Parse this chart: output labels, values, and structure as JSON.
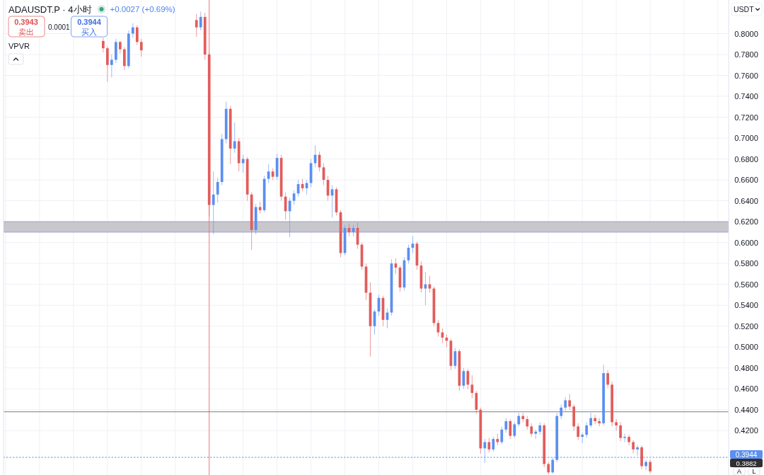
{
  "chart_data": {
    "type": "candlestick",
    "title": "ADAUSDT.P · 4小时",
    "ylabel": "USDT",
    "categories": [
      null,
      null,
      null,
      null,
      null,
      null,
      null,
      null,
      null,
      null,
      null,
      null,
      null,
      null,
      null,
      null,
      null,
      null,
      null,
      null,
      null,
      null,
      null,
      null,
      null,
      null,
      null,
      null,
      null,
      null,
      null,
      null,
      null,
      null,
      null,
      null,
      null,
      null,
      null,
      null,
      null,
      null,
      null,
      null,
      null,
      null,
      null,
      null,
      null,
      null,
      null,
      null,
      null,
      null,
      null,
      null,
      null,
      null,
      null,
      null,
      null,
      null,
      null,
      null,
      null,
      null,
      null,
      null,
      null,
      null,
      null,
      null,
      null,
      null,
      null,
      null,
      null,
      null,
      null,
      null,
      null,
      null,
      null,
      null,
      null,
      null,
      null,
      null,
      null,
      null,
      null,
      null,
      null,
      null,
      null,
      null,
      null,
      null,
      null,
      null,
      null,
      null,
      null,
      null,
      null,
      null,
      null,
      null,
      null,
      null,
      null,
      null,
      null,
      null,
      null,
      null,
      null,
      null,
      null,
      null,
      null,
      null,
      null,
      null,
      null,
      null,
      null,
      null,
      null,
      null,
      null,
      null,
      null,
      null,
      null,
      null,
      null,
      null,
      null,
      null,
      null,
      null,
      null,
      null,
      null,
      null,
      null,
      null,
      null,
      null,
      null,
      null,
      null,
      null,
      null,
      null,
      null,
      null,
      null,
      null,
      null,
      null,
      null,
      null,
      null,
      null,
      null,
      null,
      null,
      null,
      null
    ],
    "ohlc": [
      null,
      null,
      null,
      null,
      null,
      null,
      null,
      null,
      null,
      null,
      null,
      null,
      null,
      null,
      null,
      null,
      null,
      null,
      null,
      null,
      null,
      null,
      null,
      [
        0.793,
        0.796,
        0.782,
        0.786
      ],
      [
        0.786,
        0.788,
        0.754,
        0.77
      ],
      [
        0.77,
        0.78,
        0.758,
        0.775
      ],
      [
        0.775,
        0.795,
        0.772,
        0.792
      ],
      [
        0.792,
        0.793,
        0.781,
        0.785
      ],
      [
        0.785,
        0.787,
        0.765,
        0.769
      ],
      [
        0.769,
        0.803,
        0.767,
        0.8
      ],
      [
        0.8,
        0.81,
        0.796,
        0.806
      ],
      [
        0.806,
        0.808,
        0.789,
        0.792
      ],
      [
        0.792,
        0.795,
        0.778,
        0.784
      ],
      null,
      null,
      null,
      null,
      null,
      null,
      null,
      null,
      null,
      null,
      null,
      null,
      [
        0.813,
        0.819,
        0.797,
        0.806
      ],
      [
        0.806,
        0.821,
        0.803,
        0.816
      ],
      [
        0.816,
        0.82,
        0.775,
        0.78
      ],
      [
        0.78,
        0.782,
        0.625,
        0.636
      ],
      [
        0.636,
        0.668,
        0.608,
        0.646
      ],
      [
        0.646,
        0.662,
        0.638,
        0.658
      ],
      [
        0.658,
        0.704,
        0.655,
        0.699
      ],
      [
        0.699,
        0.735,
        0.695,
        0.728
      ],
      [
        0.728,
        0.731,
        0.675,
        0.69
      ],
      [
        0.69,
        0.715,
        0.686,
        0.697
      ],
      [
        0.697,
        0.7,
        0.668,
        0.676
      ],
      [
        0.676,
        0.684,
        0.667,
        0.68
      ],
      [
        0.68,
        0.682,
        0.64,
        0.646
      ],
      [
        0.646,
        0.648,
        0.593,
        0.612
      ],
      [
        0.612,
        0.637,
        0.608,
        0.634
      ],
      [
        0.634,
        0.639,
        0.628,
        0.631
      ],
      [
        0.631,
        0.664,
        0.629,
        0.661
      ],
      [
        0.661,
        0.675,
        0.657,
        0.668
      ],
      [
        0.668,
        0.671,
        0.66,
        0.663
      ],
      [
        0.663,
        0.685,
        0.66,
        0.681
      ],
      [
        0.681,
        0.684,
        0.64,
        0.644
      ],
      [
        0.644,
        0.648,
        0.622,
        0.63
      ],
      [
        0.63,
        0.643,
        0.605,
        0.64
      ],
      [
        0.64,
        0.65,
        0.636,
        0.647
      ],
      [
        0.647,
        0.66,
        0.644,
        0.656
      ],
      [
        0.656,
        0.661,
        0.649,
        0.652
      ],
      [
        0.652,
        0.66,
        0.646,
        0.657
      ],
      [
        0.657,
        0.68,
        0.653,
        0.676
      ],
      [
        0.676,
        0.693,
        0.672,
        0.684
      ],
      [
        0.684,
        0.687,
        0.668,
        0.672
      ],
      [
        0.672,
        0.676,
        0.655,
        0.66
      ],
      [
        0.66,
        0.664,
        0.64,
        0.645
      ],
      [
        0.645,
        0.655,
        0.624,
        0.651
      ],
      [
        0.651,
        0.653,
        0.626,
        0.629
      ],
      [
        0.629,
        0.631,
        0.586,
        0.59
      ],
      [
        0.59,
        0.617,
        0.588,
        0.614
      ],
      [
        0.614,
        0.618,
        0.606,
        0.61
      ],
      [
        0.61,
        0.617,
        0.606,
        0.614
      ],
      [
        0.614,
        0.619,
        0.594,
        0.598
      ],
      [
        0.598,
        0.6,
        0.574,
        0.577
      ],
      [
        0.577,
        0.58,
        0.545,
        0.552
      ],
      [
        0.552,
        0.562,
        0.491,
        0.52
      ],
      [
        0.52,
        0.536,
        0.512,
        0.534
      ],
      [
        0.534,
        0.55,
        0.53,
        0.547
      ],
      [
        0.547,
        0.549,
        0.52,
        0.526
      ],
      [
        0.526,
        0.537,
        0.518,
        0.533
      ],
      [
        0.533,
        0.584,
        0.53,
        0.58
      ],
      [
        0.58,
        0.585,
        0.57,
        0.576
      ],
      [
        0.576,
        0.578,
        0.553,
        0.557
      ],
      [
        0.557,
        0.586,
        0.554,
        0.583
      ],
      [
        0.583,
        0.598,
        0.58,
        0.595
      ],
      [
        0.595,
        0.606,
        0.59,
        0.599
      ],
      [
        0.599,
        0.601,
        0.574,
        0.578
      ],
      [
        0.578,
        0.582,
        0.552,
        0.556
      ],
      [
        0.556,
        0.572,
        0.54,
        0.56
      ],
      [
        0.56,
        0.568,
        0.552,
        0.556
      ],
      [
        0.556,
        0.558,
        0.52,
        0.523
      ],
      [
        0.523,
        0.526,
        0.51,
        0.514
      ],
      [
        0.514,
        0.518,
        0.504,
        0.509
      ],
      [
        0.509,
        0.512,
        0.5,
        0.506
      ],
      [
        0.506,
        0.508,
        0.478,
        0.482
      ],
      [
        0.482,
        0.499,
        0.479,
        0.496
      ],
      [
        0.496,
        0.498,
        0.458,
        0.463
      ],
      [
        0.463,
        0.48,
        0.46,
        0.477
      ],
      [
        0.477,
        0.479,
        0.46,
        0.464
      ],
      [
        0.464,
        0.473,
        0.451,
        0.456
      ],
      [
        0.456,
        0.458,
        0.436,
        0.44
      ],
      [
        0.44,
        0.442,
        0.398,
        0.403
      ],
      [
        0.403,
        0.412,
        0.389,
        0.409
      ],
      [
        0.409,
        0.413,
        0.399,
        0.402
      ],
      [
        0.402,
        0.414,
        0.4,
        0.412
      ],
      [
        0.412,
        0.417,
        0.406,
        0.409
      ],
      [
        0.409,
        0.424,
        0.407,
        0.421
      ],
      [
        0.421,
        0.432,
        0.418,
        0.429
      ],
      [
        0.429,
        0.431,
        0.412,
        0.415
      ],
      [
        0.415,
        0.428,
        0.413,
        0.426
      ],
      [
        0.426,
        0.437,
        0.424,
        0.434
      ],
      [
        0.434,
        0.437,
        0.428,
        0.431
      ],
      [
        0.431,
        0.434,
        0.421,
        0.424
      ],
      [
        0.424,
        0.427,
        0.414,
        0.417
      ],
      [
        0.417,
        0.421,
        0.412,
        0.419
      ],
      [
        0.419,
        0.428,
        0.416,
        0.425
      ],
      [
        0.425,
        0.427,
        0.385,
        0.388
      ],
      [
        0.388,
        0.39,
        0.378,
        0.38
      ],
      [
        0.38,
        0.394,
        0.379,
        0.392
      ],
      [
        0.392,
        0.437,
        0.39,
        0.434
      ],
      [
        0.434,
        0.445,
        0.431,
        0.442
      ],
      [
        0.442,
        0.452,
        0.439,
        0.449
      ],
      [
        0.449,
        0.455,
        0.44,
        0.443
      ],
      [
        0.443,
        0.445,
        0.42,
        0.424
      ],
      [
        0.424,
        0.427,
        0.411,
        0.414
      ],
      [
        0.414,
        0.418,
        0.408,
        0.416
      ],
      [
        0.416,
        0.428,
        0.413,
        0.425
      ],
      [
        0.425,
        0.437,
        0.423,
        0.432
      ],
      [
        0.432,
        0.435,
        0.426,
        0.429
      ],
      [
        0.429,
        0.432,
        0.424,
        0.427
      ],
      [
        0.427,
        0.483,
        0.425,
        0.475
      ],
      [
        0.475,
        0.478,
        0.461,
        0.464
      ],
      [
        0.464,
        0.467,
        0.424,
        0.428
      ],
      [
        0.428,
        0.431,
        0.42,
        0.425
      ],
      [
        0.425,
        0.428,
        0.41,
        0.413
      ],
      [
        0.413,
        0.417,
        0.409,
        0.414
      ],
      [
        0.414,
        0.416,
        0.406,
        0.409
      ],
      [
        0.409,
        0.411,
        0.398,
        0.402
      ],
      [
        0.402,
        0.406,
        0.396,
        0.404
      ],
      [
        0.404,
        0.406,
        0.383,
        0.386
      ],
      [
        0.386,
        0.392,
        0.382,
        0.39
      ],
      [
        0.39,
        0.392,
        0.379,
        0.381
      ],
      null,
      null,
      null,
      null,
      null,
      null,
      null,
      null,
      null,
      null,
      null,
      null,
      null,
      null,
      null,
      null,
      null,
      null
    ],
    "colors": [
      null,
      null,
      null,
      null,
      null,
      null,
      null,
      null,
      null,
      null,
      null,
      null,
      null,
      null,
      null,
      null,
      null,
      null,
      null,
      null,
      null,
      null,
      null,
      "#e25c5c",
      "#e25c5c",
      "#5b8ff0",
      "#5b8ff0",
      "#e25c5c",
      "#e25c5c",
      "#5b8ff0",
      "#5b8ff0",
      "#e25c5c",
      "#e25c5c",
      null,
      null,
      null,
      null,
      null,
      null,
      null,
      null,
      null,
      null,
      null,
      null,
      "#e25c5c",
      "#5b8ff0",
      "#e25c5c",
      "#e25c5c",
      "#5b8ff0",
      "#5b8ff0",
      "#5b8ff0",
      "#5b8ff0",
      "#e25c5c",
      "#5b8ff0",
      "#e25c5c",
      "#5b8ff0",
      "#e25c5c",
      "#e25c5c",
      "#5b8ff0",
      "#e25c5c",
      "#5b8ff0",
      "#5b8ff0",
      "#e25c5c",
      "#5b8ff0",
      "#e25c5c",
      "#e25c5c",
      "#5b8ff0",
      "#5b8ff0",
      "#5b8ff0",
      "#e25c5c",
      "#5b8ff0",
      "#5b8ff0",
      "#5b8ff0",
      "#e25c5c",
      "#e25c5c",
      "#e25c5c",
      "#5b8ff0",
      "#e25c5c",
      "#e25c5c",
      "#5b8ff0",
      "#e25c5c",
      "#5b8ff0",
      "#e25c5c",
      "#e25c5c",
      "#e25c5c",
      "#e25c5c",
      "#5b8ff0",
      "#5b8ff0",
      "#e25c5c",
      "#5b8ff0",
      "#5b8ff0",
      "#e25c5c",
      "#e25c5c",
      "#5b8ff0",
      "#5b8ff0",
      "#5b8ff0",
      "#e25c5c",
      "#e25c5c",
      "#5b8ff0",
      "#e25c5c",
      "#e25c5c",
      "#e25c5c",
      "#e25c5c",
      "#e25c5c",
      "#e25c5c",
      "#5b8ff0",
      "#e25c5c",
      "#5b8ff0",
      "#e25c5c",
      "#e25c5c",
      "#e25c5c",
      "#e25c5c",
      "#5b8ff0",
      "#e25c5c",
      "#5b8ff0",
      "#e25c5c",
      "#5b8ff0",
      "#5b8ff0",
      "#e25c5c",
      "#5b8ff0",
      "#5b8ff0",
      "#e25c5c",
      "#e25c5c",
      "#e25c5c",
      "#5b8ff0",
      "#5b8ff0",
      "#e25c5c",
      "#e25c5c",
      "#5b8ff0",
      "#5b8ff0",
      "#5b8ff0",
      "#5b8ff0",
      "#e25c5c",
      "#e25c5c",
      "#e25c5c",
      "#5b8ff0",
      "#5b8ff0",
      "#5b8ff0",
      "#e25c5c",
      "#e25c5c",
      "#5b8ff0",
      "#e25c5c",
      "#e25c5c",
      "#e25c5c",
      "#e25c5c",
      "#5b8ff0",
      "#e25c5c",
      "#e25c5c",
      "#5b8ff0",
      "#e25c5c",
      "#5b8ff0",
      "#e25c5c",
      null,
      null,
      null,
      null,
      null,
      null,
      null,
      null,
      null,
      null,
      null,
      null,
      null,
      null,
      null,
      null,
      null,
      null
    ],
    "ylim": [
      0.3775,
      0.8322
    ],
    "yticks": [
      {
        "value": 0.42,
        "label": "0.4200"
      },
      {
        "value": 0.44,
        "label": "0.4400"
      },
      {
        "value": 0.46,
        "label": "0.4600"
      },
      {
        "value": 0.48,
        "label": "0.4800"
      },
      {
        "value": 0.5,
        "label": "0.5000"
      },
      {
        "value": 0.52,
        "label": "0.5200"
      },
      {
        "value": 0.54,
        "label": "0.5400"
      },
      {
        "value": 0.56,
        "label": "0.5600"
      },
      {
        "value": 0.58,
        "label": "0.5800"
      },
      {
        "value": 0.6,
        "label": "0.6000"
      },
      {
        "value": 0.62,
        "label": "0.6200"
      },
      {
        "value": 0.64,
        "label": "0.6400"
      },
      {
        "value": 0.66,
        "label": "0.6600"
      },
      {
        "value": 0.68,
        "label": "0.6800"
      },
      {
        "value": 0.7,
        "label": "0.7000"
      },
      {
        "value": 0.72,
        "label": "0.7200"
      },
      {
        "value": 0.74,
        "label": "0.7400"
      },
      {
        "value": 0.76,
        "label": "0.7600"
      },
      {
        "value": 0.78,
        "label": "0.7800"
      },
      {
        "value": 0.8,
        "label": "0.8000"
      }
    ],
    "grid": true,
    "tick_labels": "y",
    "ref_lines": [
      {
        "axis": "y",
        "value": 0.438,
        "color": "#787b86"
      },
      {
        "axis": "y",
        "value": 0.3944,
        "label": "0.3944",
        "color": "#5b8ff0",
        "line_style": "dotted"
      }
    ],
    "bands": [
      {
        "axis": "y",
        "from": 0.61,
        "to": 0.62,
        "color": "#c8c8cc"
      }
    ],
    "annotations": [
      "+0.0027 (+0.69%)",
      "0.3943",
      "卖出",
      "0.0001",
      "0.3944",
      "买入",
      "VPVR",
      "0.3882",
      "A",
      "L"
    ]
  }
}
